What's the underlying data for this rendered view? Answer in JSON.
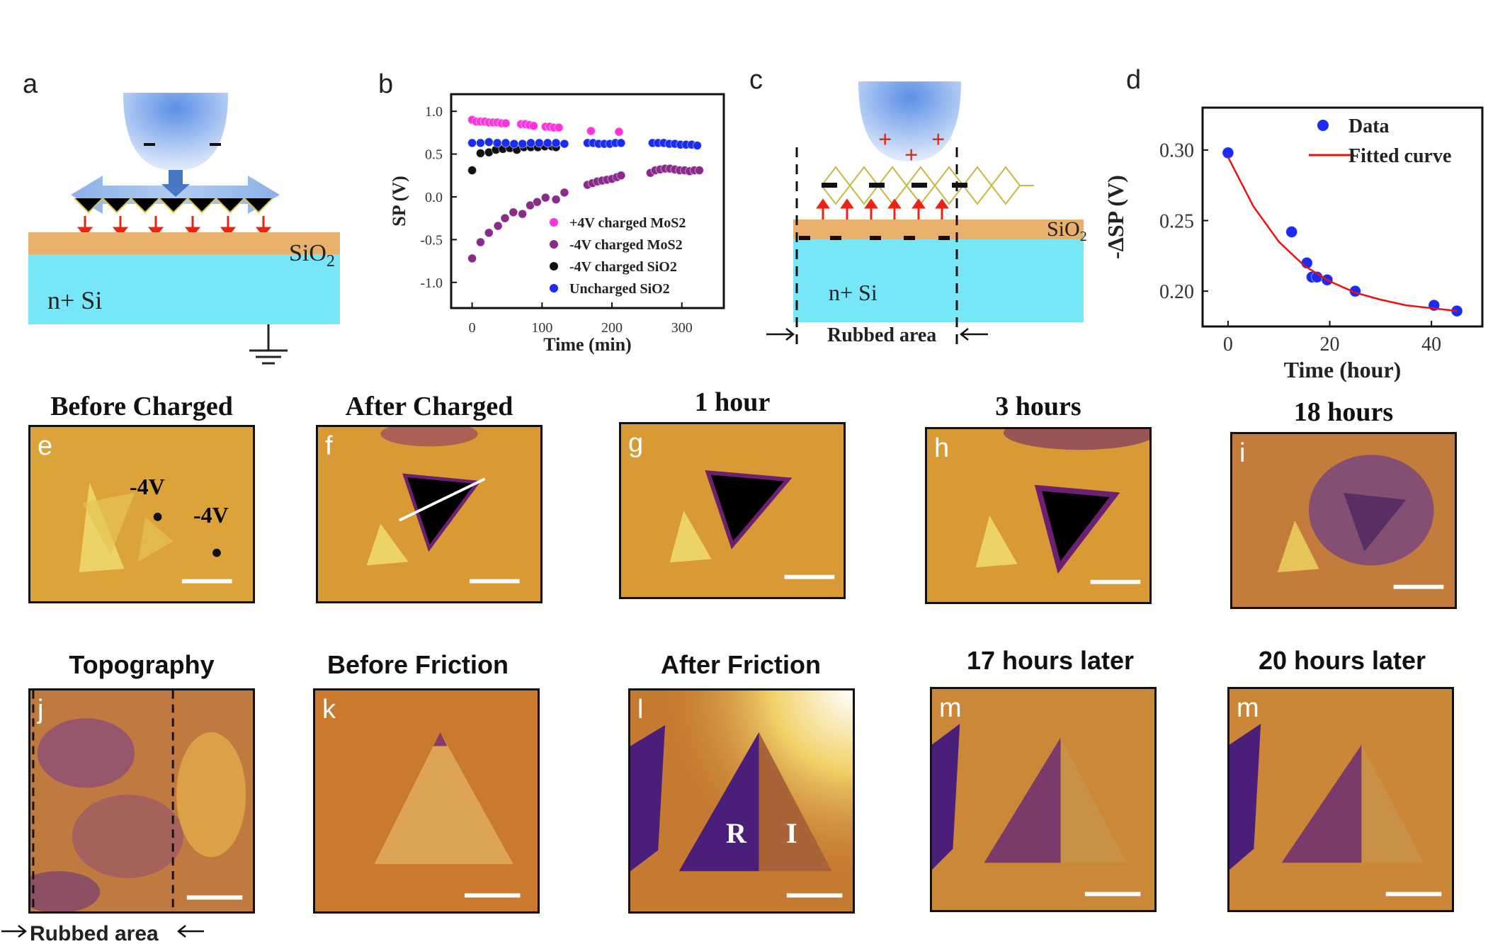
{
  "panels": {
    "a": {
      "label": "a",
      "sio2": "SiO",
      "sio2_sub": "2",
      "si": "n+ Si",
      "tip_charges": [
        "−",
        "−"
      ]
    },
    "b": {
      "label": "b"
    },
    "c": {
      "label": "c",
      "sio2": "SiO",
      "sio2_sub": "2",
      "si": "n+ Si",
      "rubbed": "Rubbed area",
      "tip_charges": [
        "+",
        "+",
        "+"
      ]
    },
    "d": {
      "label": "d"
    },
    "images_row1": [
      {
        "letter": "e",
        "title": "Before Charged",
        "annotations": [
          "-4V",
          "-4V"
        ]
      },
      {
        "letter": "f",
        "title": "After Charged"
      },
      {
        "letter": "g",
        "title": "1 hour"
      },
      {
        "letter": "h",
        "title": "3 hours"
      },
      {
        "letter": "i",
        "title": "18 hours"
      }
    ],
    "images_row2": [
      {
        "letter": "j",
        "title": "Topography",
        "rubbed": "Rubbed area"
      },
      {
        "letter": "k",
        "title": "Before Friction"
      },
      {
        "letter": "l",
        "title": "After Friction",
        "annotations": [
          "R",
          "I"
        ]
      },
      {
        "letter": "m",
        "title": "17 hours later"
      },
      {
        "letter": "m",
        "title": "20 hours later"
      }
    ]
  },
  "chart_data": [
    {
      "type": "scatter",
      "panel": "b",
      "xlabel": "Time (min)",
      "ylabel": "SP (V)",
      "xlim": [
        -30,
        360
      ],
      "ylim": [
        -1.3,
        1.2
      ],
      "xticks": [
        0,
        100,
        200,
        300
      ],
      "yticks": [
        1.0,
        0.5,
        0.0,
        -0.5,
        -1.0
      ],
      "ytick_labels": [
        "1.0",
        "0.5",
        "0.0",
        "-0.5",
        "-1.0"
      ],
      "legend": "bottom-right",
      "series": [
        {
          "name": "+4V charged MoS2",
          "color": "#ff33dd",
          "x": [
            0,
            6,
            12,
            18,
            24,
            30,
            36,
            42,
            48,
            70,
            76,
            82,
            88,
            105,
            111,
            117,
            124,
            170,
            210
          ],
          "y": [
            0.9,
            0.88,
            0.88,
            0.88,
            0.87,
            0.87,
            0.87,
            0.86,
            0.86,
            0.85,
            0.85,
            0.84,
            0.83,
            0.82,
            0.82,
            0.81,
            0.81,
            0.77,
            0.76
          ]
        },
        {
          "name": "-4V charged MoS2",
          "color": "#8a2a8a",
          "x": [
            0,
            12,
            24,
            37,
            47,
            59,
            72,
            83,
            93,
            105,
            120,
            132,
            165,
            172,
            179,
            186,
            193,
            200,
            207,
            213,
            255,
            262,
            269,
            276,
            283,
            290,
            297,
            304,
            311,
            318,
            325
          ],
          "y": [
            -0.72,
            -0.53,
            -0.42,
            -0.34,
            -0.25,
            -0.18,
            -0.2,
            -0.1,
            -0.06,
            -0.01,
            -0.03,
            0.05,
            0.14,
            0.16,
            0.18,
            0.19,
            0.2,
            0.21,
            0.23,
            0.25,
            0.28,
            0.31,
            0.32,
            0.33,
            0.33,
            0.32,
            0.31,
            0.31,
            0.3,
            0.31,
            0.31
          ]
        },
        {
          "name": "-4V charged SiO2",
          "color": "#111111",
          "x": [
            0,
            12,
            24,
            34,
            44,
            54,
            64,
            74,
            84,
            94,
            104,
            114,
            120
          ],
          "y": [
            0.31,
            0.51,
            0.52,
            0.55,
            0.56,
            0.57,
            0.55,
            0.58,
            0.58,
            0.58,
            0.59,
            0.59,
            0.58
          ]
        },
        {
          "name": "Uncharged SiO2",
          "color": "#1a2cf0",
          "x": [
            0,
            12,
            24,
            36,
            48,
            60,
            72,
            84,
            96,
            108,
            120,
            132,
            165,
            173,
            181,
            189,
            197,
            205,
            213,
            258,
            266,
            274,
            282,
            290,
            298,
            306,
            314,
            322
          ],
          "y": [
            0.63,
            0.63,
            0.64,
            0.63,
            0.63,
            0.62,
            0.62,
            0.63,
            0.63,
            0.63,
            0.63,
            0.62,
            0.63,
            0.63,
            0.62,
            0.62,
            0.62,
            0.63,
            0.63,
            0.63,
            0.63,
            0.63,
            0.62,
            0.62,
            0.61,
            0.61,
            0.61,
            0.6
          ]
        }
      ]
    },
    {
      "type": "scatter",
      "panel": "d",
      "xlabel": "Time (hour)",
      "ylabel": "-ΔSP (V)",
      "xlim": [
        -5,
        50
      ],
      "ylim": [
        0.175,
        0.33
      ],
      "xticks": [
        0,
        20,
        40
      ],
      "yticks": [
        0.2,
        0.25,
        0.3
      ],
      "ytick_labels": [
        "0.20",
        "0.25",
        "0.30"
      ],
      "legend": "top-right",
      "series": [
        {
          "name": "Data",
          "color": "#1a2cf0",
          "x": [
            0,
            12.5,
            15.5,
            16.5,
            17.5,
            19.5,
            25,
            40.5,
            45
          ],
          "y": [
            0.298,
            0.242,
            0.22,
            0.21,
            0.21,
            0.208,
            0.2,
            0.19,
            0.186
          ]
        },
        {
          "name": "Fitted curve",
          "color": "#ee1111",
          "type": "line",
          "x": [
            0,
            5,
            10,
            15,
            20,
            25,
            30,
            35,
            40,
            45
          ],
          "y": [
            0.295,
            0.26,
            0.235,
            0.218,
            0.207,
            0.199,
            0.194,
            0.19,
            0.188,
            0.186
          ]
        }
      ]
    }
  ]
}
